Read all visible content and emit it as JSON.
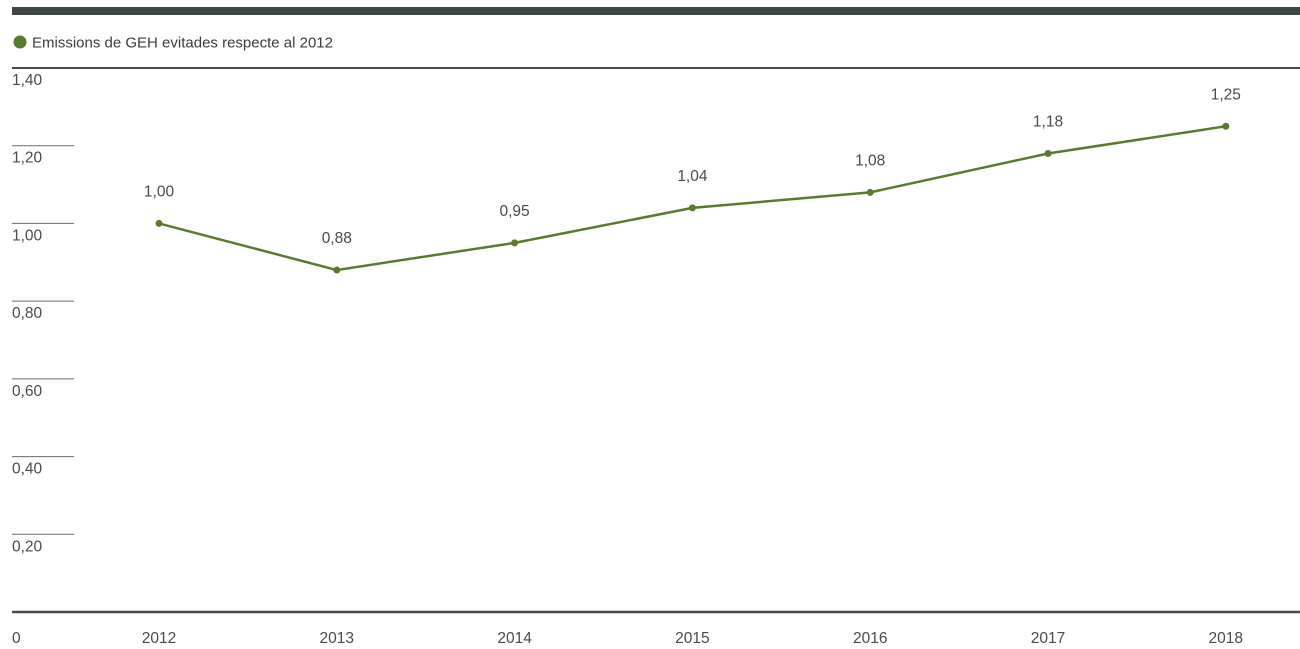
{
  "chart_data": {
    "type": "line",
    "categories": [
      "2012",
      "2013",
      "2014",
      "2015",
      "2016",
      "2017",
      "2018"
    ],
    "series": [
      {
        "name": "Emissions de GEH evitades respecte al 2012",
        "values": [
          1.0,
          0.88,
          0.95,
          1.04,
          1.08,
          1.18,
          1.25
        ],
        "data_labels": [
          "1,00",
          "0,88",
          "0,95",
          "1,04",
          "1,08",
          "1,18",
          "1,25"
        ],
        "color": "#5a7a2e"
      }
    ],
    "legend": {
      "label": "Emissions de GEH evitades respecte al 2012",
      "placement": "top-left"
    },
    "y_ticks": [
      {
        "value": 1.4,
        "label": "1,40"
      },
      {
        "value": 1.2,
        "label": "1,20"
      },
      {
        "value": 1.0,
        "label": "1,00"
      },
      {
        "value": 0.8,
        "label": "0,80"
      },
      {
        "value": 0.6,
        "label": "0,60"
      },
      {
        "value": 0.4,
        "label": "0,40"
      },
      {
        "value": 0.2,
        "label": "0,20"
      },
      {
        "value": 0,
        "label": "0"
      }
    ],
    "ylim": [
      0,
      1.4
    ],
    "grid": false,
    "title": "",
    "xlabel": "",
    "ylabel": "",
    "colors": {
      "top_bar": "#3f4540",
      "axis_line": "#4a4a4a",
      "tick_line": "#6a6a6a",
      "text": "#4a4a4a"
    }
  }
}
